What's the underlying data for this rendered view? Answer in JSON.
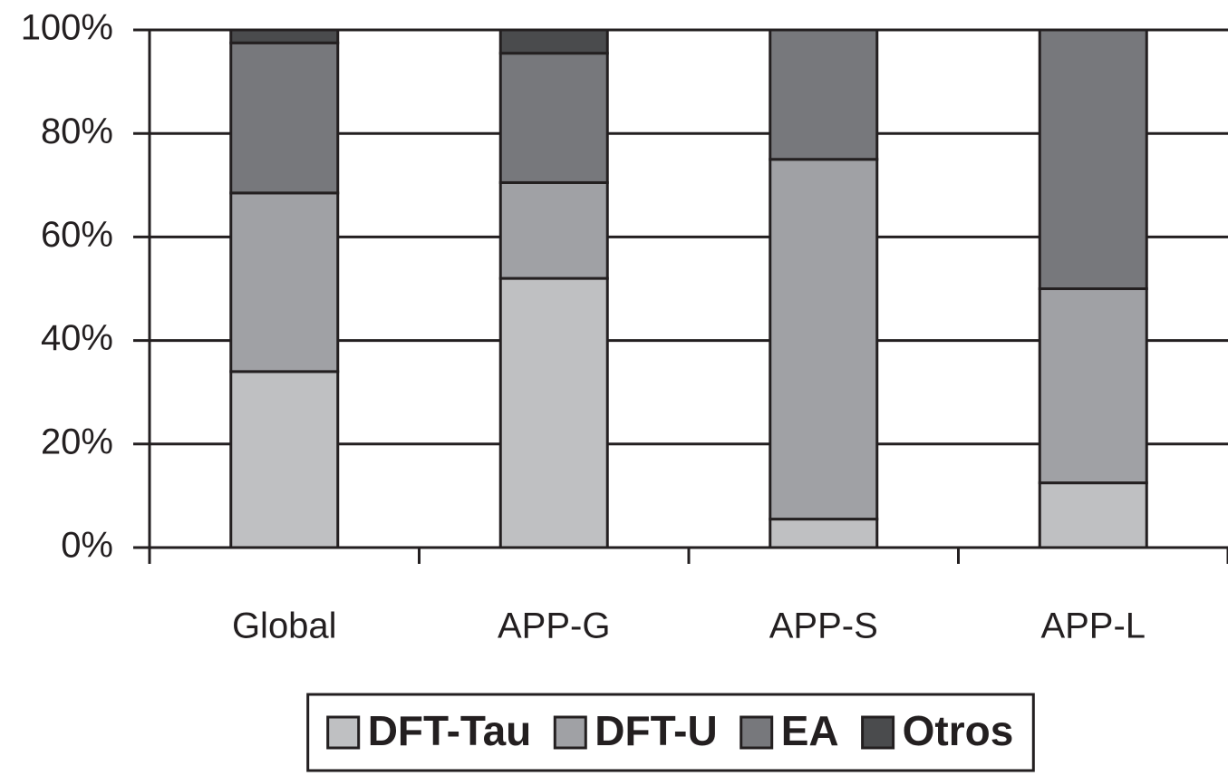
{
  "chart_data": {
    "type": "stacked_bar",
    "categories": [
      "Global",
      "APP-G",
      "APP-S",
      "APP-L"
    ],
    "series": [
      {
        "name": "DFT-Tau",
        "color": "#bfc0c2",
        "values": [
          34,
          52,
          5.5,
          12.5
        ]
      },
      {
        "name": "DFT-U",
        "color": "#a0a1a5",
        "values": [
          34.5,
          18.5,
          69.5,
          37.5
        ]
      },
      {
        "name": "EA",
        "color": "#77787c",
        "values": [
          29,
          25,
          25,
          50
        ]
      },
      {
        "name": "Otros",
        "color": "#4a4b4d",
        "values": [
          2.5,
          4.5,
          0,
          0
        ]
      }
    ],
    "ylim": [
      0,
      100
    ],
    "yticks": [
      {
        "value": 0,
        "label": "0%"
      },
      {
        "value": 20,
        "label": "20%"
      },
      {
        "value": 40,
        "label": "40%"
      },
      {
        "value": 60,
        "label": "60%"
      },
      {
        "value": 80,
        "label": "80%"
      },
      {
        "value": 100,
        "label": "100%"
      }
    ],
    "grid": true,
    "legend": "bottom"
  }
}
